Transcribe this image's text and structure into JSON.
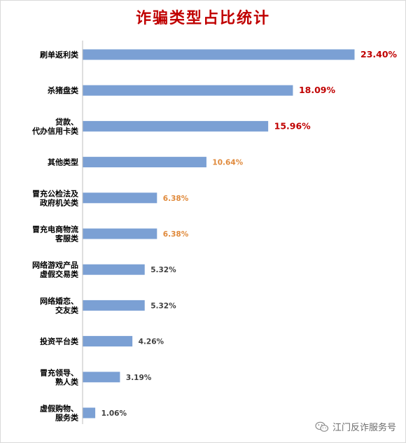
{
  "chart_data": {
    "type": "bar",
    "orientation": "horizontal",
    "title": "诈骗类型占比统计",
    "xlabel": "",
    "ylabel": "",
    "xlim": [
      0,
      25
    ],
    "grid": false,
    "legend": "none",
    "bar_color": "#7ba0d4",
    "categories": [
      [
        "刷单返利类"
      ],
      [
        "杀猪盘类"
      ],
      [
        "贷款、",
        "代办信用卡类"
      ],
      [
        "其他类型"
      ],
      [
        "冒充公检法及",
        "政府机关类"
      ],
      [
        "冒充电商物流",
        "客服类"
      ],
      [
        "网络游戏产品",
        "虚假交易类"
      ],
      [
        "网络婚恋、",
        "交友类"
      ],
      [
        "投资平台类"
      ],
      [
        "冒充领导、",
        "熟人类"
      ],
      [
        "虚假购物、",
        "服务类"
      ]
    ],
    "values": [
      23.4,
      18.09,
      15.96,
      10.64,
      6.38,
      6.38,
      5.32,
      5.32,
      4.26,
      3.19,
      1.06
    ],
    "value_labels": [
      "23.40%",
      "18.09%",
      "15.96%",
      "10.64%",
      "6.38%",
      "6.38%",
      "5.32%",
      "5.32%",
      "4.26%",
      "3.19%",
      "1.06%"
    ],
    "value_label_colors": [
      "#c00000",
      "#c00000",
      "#c00000",
      "#e08a3c",
      "#e08a3c",
      "#e08a3c",
      "#404040",
      "#404040",
      "#404040",
      "#404040",
      "#404040"
    ]
  },
  "watermark": {
    "icon": "wechat-icon",
    "text": "江门反诈服务号"
  }
}
